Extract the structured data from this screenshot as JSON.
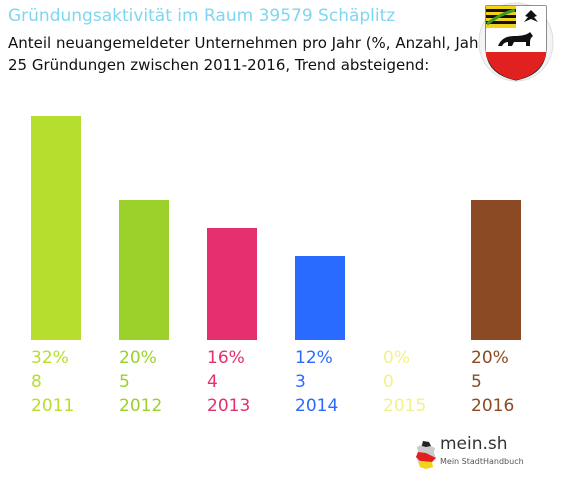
{
  "header": {
    "title": "Gründungsaktivität im Raum 39579 Schäplitz",
    "subtitle_line1": "Anteil neuangemeldeter Unternehmen pro Jahr (%, Anzahl, Jahr)",
    "subtitle_line2": "25 Gründungen zwischen 2011-2016, Trend absteigend:"
  },
  "logo": {
    "main": "mein.sh",
    "sub": "Mein StadtHandbuch"
  },
  "chart_data": {
    "type": "bar",
    "categories": [
      "2011",
      "2012",
      "2013",
      "2014",
      "2015",
      "2016"
    ],
    "percent": [
      32,
      20,
      16,
      12,
      0,
      20
    ],
    "percent_labels": [
      "32%",
      "20%",
      "16%",
      "12%",
      "0%",
      "20%"
    ],
    "counts": [
      "8",
      "5",
      "4",
      "3",
      "0",
      "5"
    ],
    "colors": [
      "#b5de2f",
      "#9bd12a",
      "#e4306e",
      "#2a6bff",
      "#f4f08a",
      "#8b4a23"
    ],
    "ylim": [
      0,
      32
    ],
    "grid": false
  }
}
